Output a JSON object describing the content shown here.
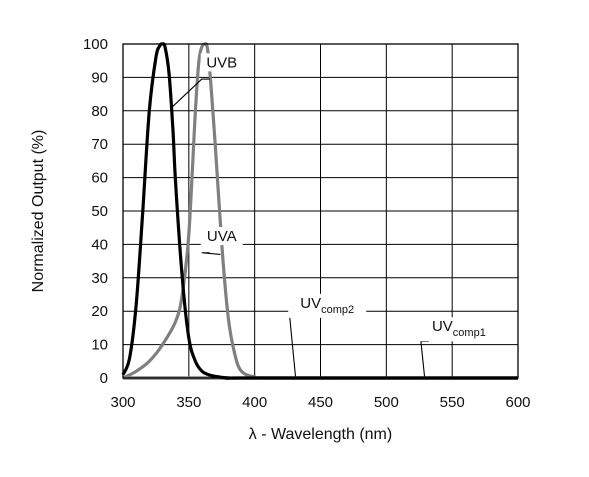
{
  "chart_data": {
    "type": "line",
    "xlabel": "λ - Wavelength (nm)",
    "ylabel": "Normalized Output (%)",
    "xlim": [
      300,
      600
    ],
    "ylim": [
      0,
      100
    ],
    "x_ticks": [
      "300",
      "350",
      "400",
      "450",
      "500",
      "550",
      "600"
    ],
    "y_ticks": [
      "0",
      "10",
      "20",
      "30",
      "40",
      "50",
      "60",
      "70",
      "80",
      "90",
      "100"
    ],
    "grid": true,
    "series": [
      {
        "name": "UVB",
        "color": "#000000",
        "x": [
          300,
          305,
          310,
          315,
          320,
          325,
          328,
          330,
          332,
          335,
          338,
          340,
          345,
          350,
          355,
          360,
          365,
          370,
          380,
          400,
          600
        ],
        "y": [
          1,
          6,
          22,
          50,
          80,
          96,
          99.5,
          100,
          99,
          91,
          74,
          58,
          30,
          12,
          5,
          2,
          1,
          0.5,
          0,
          0,
          0
        ]
      },
      {
        "name": "UVA",
        "color": "#808080",
        "x": [
          300,
          310,
          320,
          330,
          340,
          345,
          350,
          355,
          358,
          362,
          365,
          370,
          375,
          380,
          385,
          390,
          400,
          410,
          600
        ],
        "y": [
          0,
          2,
          5,
          10,
          17,
          25,
          43,
          80,
          96,
          100,
          96,
          70,
          40,
          18,
          7,
          2,
          0.3,
          0,
          0
        ]
      },
      {
        "name_main": "UV",
        "name_sub": "comp2",
        "color": "#808080",
        "x": [
          300,
          600
        ],
        "y": [
          0,
          0
        ]
      },
      {
        "name_main": "UV",
        "name_sub": "comp1",
        "color": "#808080",
        "x": [
          300,
          600
        ],
        "y": [
          0,
          0
        ]
      }
    ],
    "annotations": [
      {
        "text": "UVB",
        "text_x": 375,
        "text_y": 93,
        "point_x": 337,
        "point_y": 81,
        "line_y": 89.5
      },
      {
        "text": "UVA",
        "text_x": 375,
        "text_y": 41,
        "point_x": 374,
        "point_y": 37,
        "line_y": 37.5
      },
      {
        "text": "UV",
        "sub": "comp2",
        "text_x": 446,
        "text_y": 21,
        "point_x": 431,
        "point_y": 0.5,
        "line_y": 19.8
      },
      {
        "text": "UV",
        "sub": "comp1",
        "text_x": 546,
        "text_y": 14,
        "point_x": 529,
        "point_y": 0.5,
        "line_y": 11
      }
    ]
  }
}
